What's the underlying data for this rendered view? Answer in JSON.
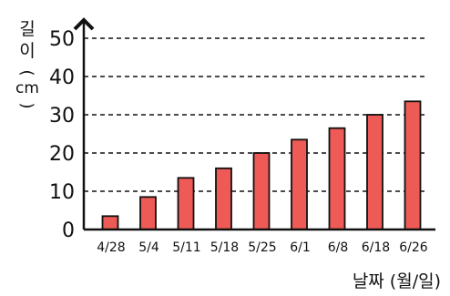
{
  "chart_data": {
    "type": "bar",
    "title": "",
    "xlabel": "날짜 (월/일)",
    "ylabel": "길이 (cm)",
    "ylabel_chars": [
      "길",
      "이"
    ],
    "ylabel_unit": "cm",
    "categories": [
      "4/28",
      "5/4",
      "5/11",
      "5/18",
      "5/25",
      "6/1",
      "6/8",
      "6/18",
      "6/26"
    ],
    "values": [
      3.5,
      8.5,
      13.5,
      16,
      20,
      23.5,
      26.5,
      30,
      33.5
    ],
    "ylim": [
      0,
      50
    ],
    "yticks": [
      0,
      10,
      20,
      30,
      40,
      50
    ],
    "grid": true,
    "legend": "none",
    "bar_color": "#ee5a55",
    "bar_stroke": "#111111",
    "grid_color": "#111111"
  }
}
